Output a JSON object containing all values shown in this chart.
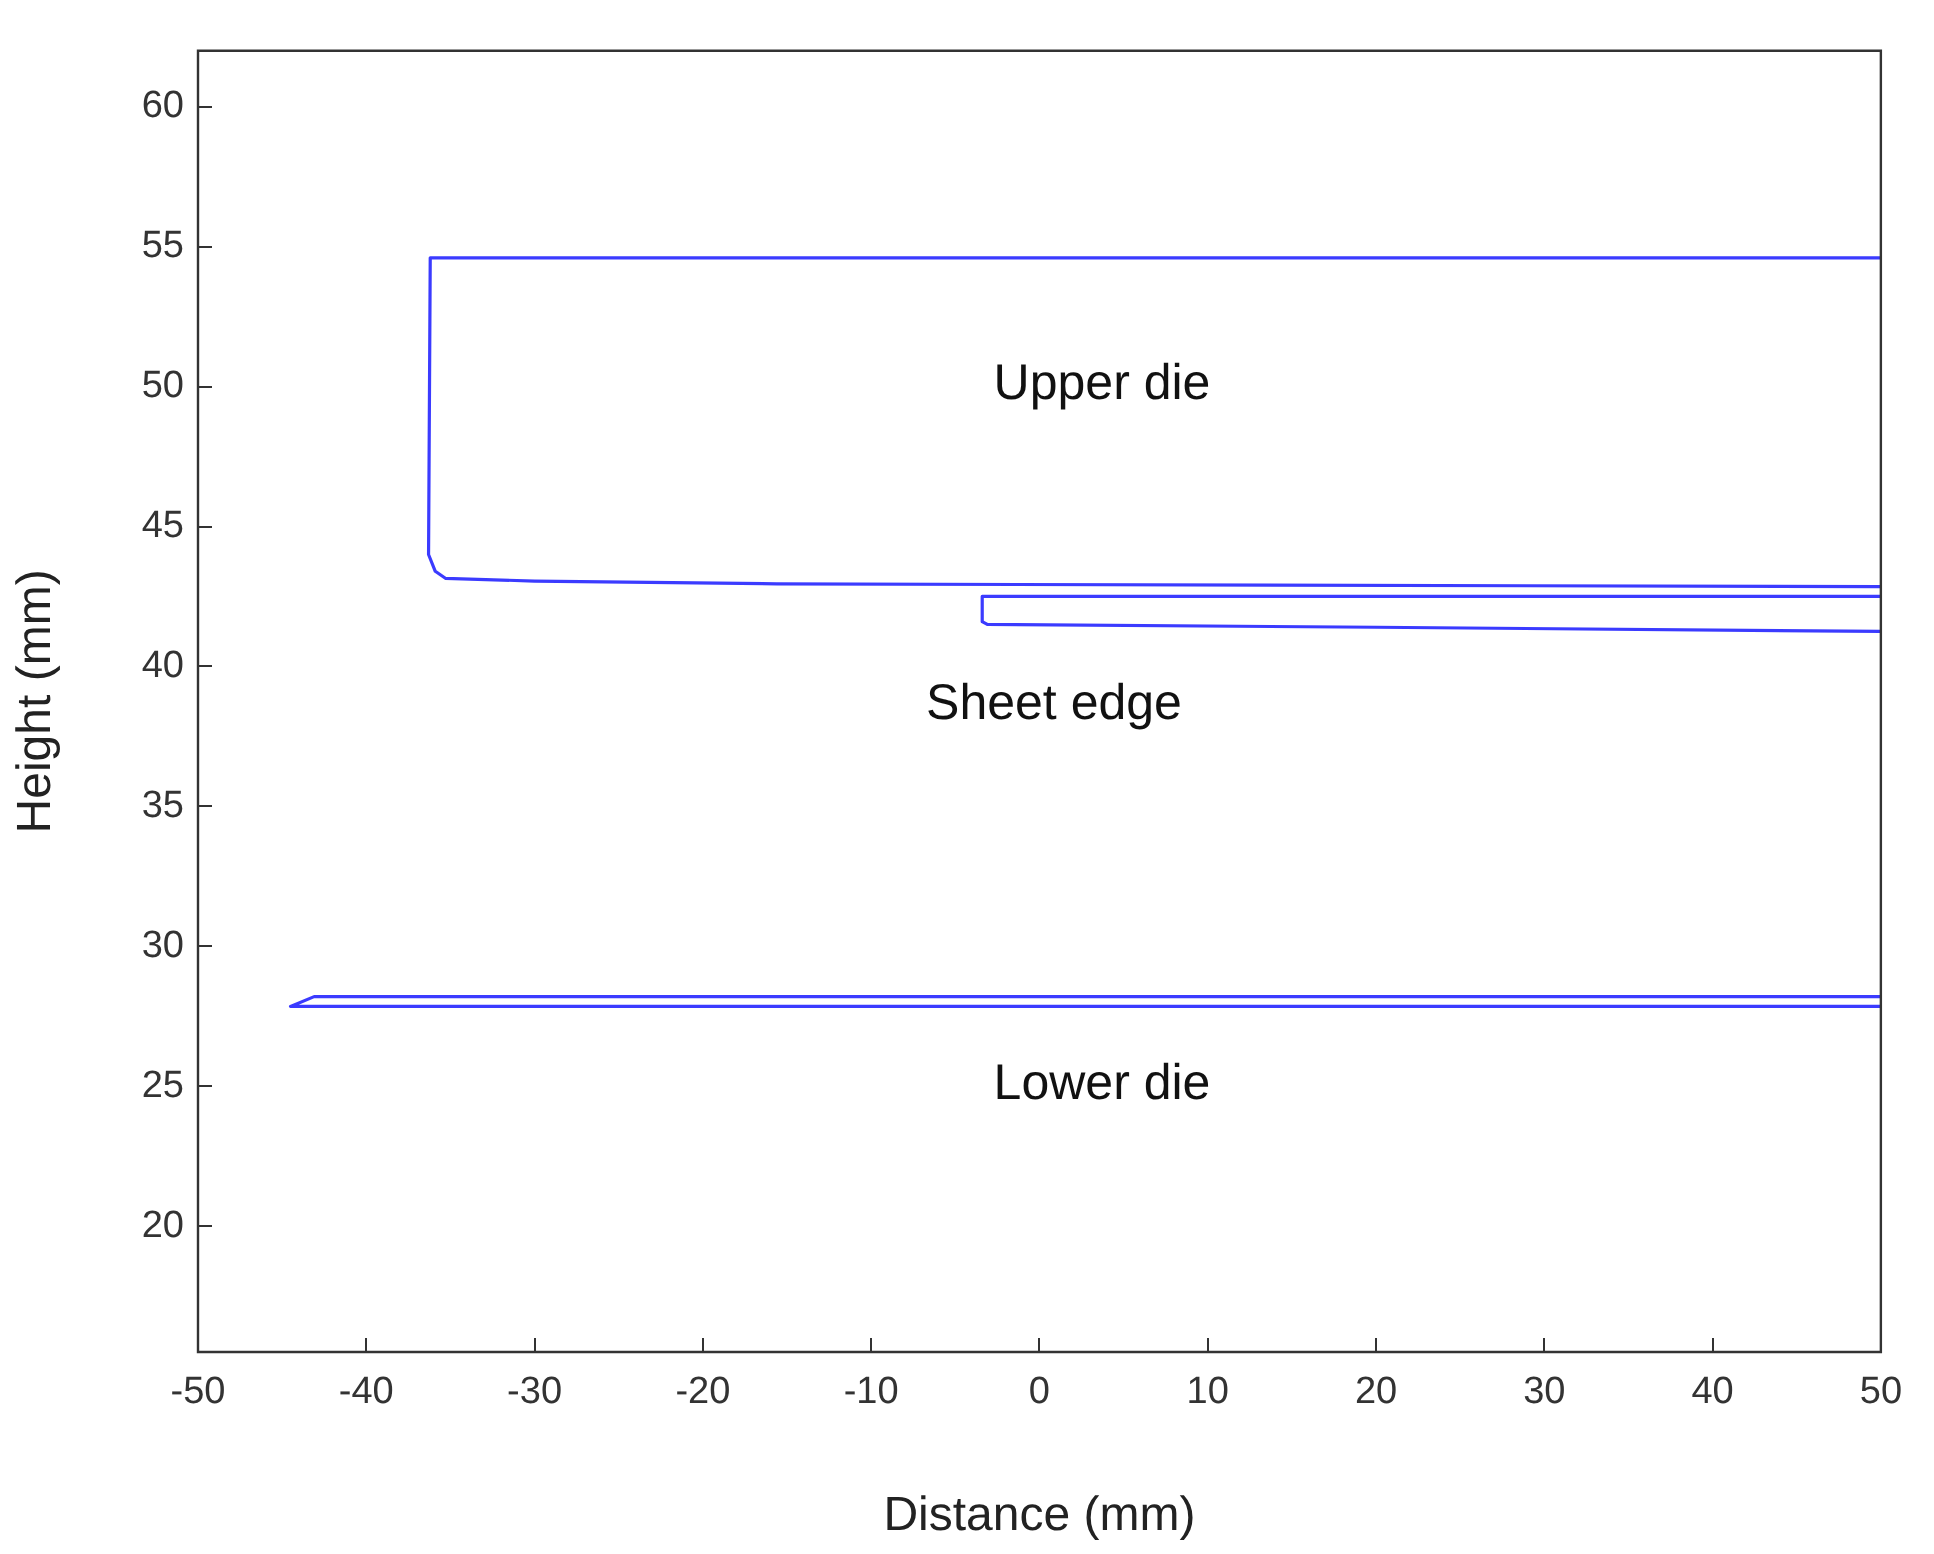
{
  "chart_data": {
    "type": "line",
    "xlabel": "Distance (mm)",
    "ylabel": "Height (mm)",
    "xlim": [
      -50,
      50
    ],
    "xticks": [
      -50,
      -40,
      -30,
      -20,
      -10,
      0,
      10,
      20,
      30,
      40,
      50
    ],
    "ylim": [
      15.5,
      62
    ],
    "yticks": [
      20,
      25,
      30,
      35,
      40,
      45,
      50,
      55,
      60
    ],
    "grid": false,
    "legend": false,
    "marker": "none",
    "line_style": "solid",
    "series": [
      {
        "color": "#3b3bff",
        "x": [
          50,
          -36.2,
          -36.3,
          -35.9,
          -35.3,
          -30,
          -15.6,
          50
        ],
        "values": [
          54.6,
          54.6,
          44,
          43.4,
          43.15,
          43.05,
          42.95,
          42.85
        ]
      },
      {
        "color": "#3b3bff",
        "x": [
          50,
          -3.4,
          -3.4,
          -3.1,
          20,
          50
        ],
        "values": [
          42.5,
          42.5,
          41.6,
          41.5,
          41.4,
          41.25
        ]
      },
      {
        "color": "#3b3bff",
        "x": [
          50,
          -43.1,
          -44.5,
          50
        ],
        "values": [
          28.2,
          28.2,
          27.85,
          27.85
        ]
      }
    ],
    "annotations": [
      "Upper die",
      "Sheet edge",
      "Lower die"
    ]
  }
}
